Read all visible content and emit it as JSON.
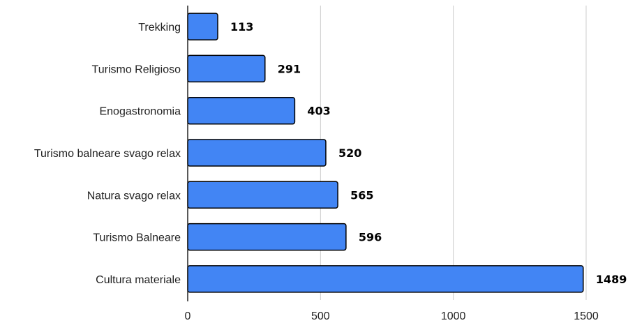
{
  "chart_data": {
    "type": "bar",
    "orientation": "horizontal",
    "title": "",
    "xlabel": "",
    "ylabel": "",
    "categories": [
      "Trekking",
      "Turismo Religioso",
      "Enogastronomia",
      "Turismo balneare svago relax",
      "Natura svago relax",
      "Turismo Balneare",
      "Cultura materiale"
    ],
    "values": [
      113,
      291,
      403,
      520,
      565,
      596,
      1489
    ],
    "xlim": [
      0,
      1500
    ],
    "ticks": [
      0,
      500,
      1000,
      1500
    ],
    "grid": true,
    "legend": "none",
    "bar_color": "#4285f4",
    "bar_border_color": "#000000"
  }
}
